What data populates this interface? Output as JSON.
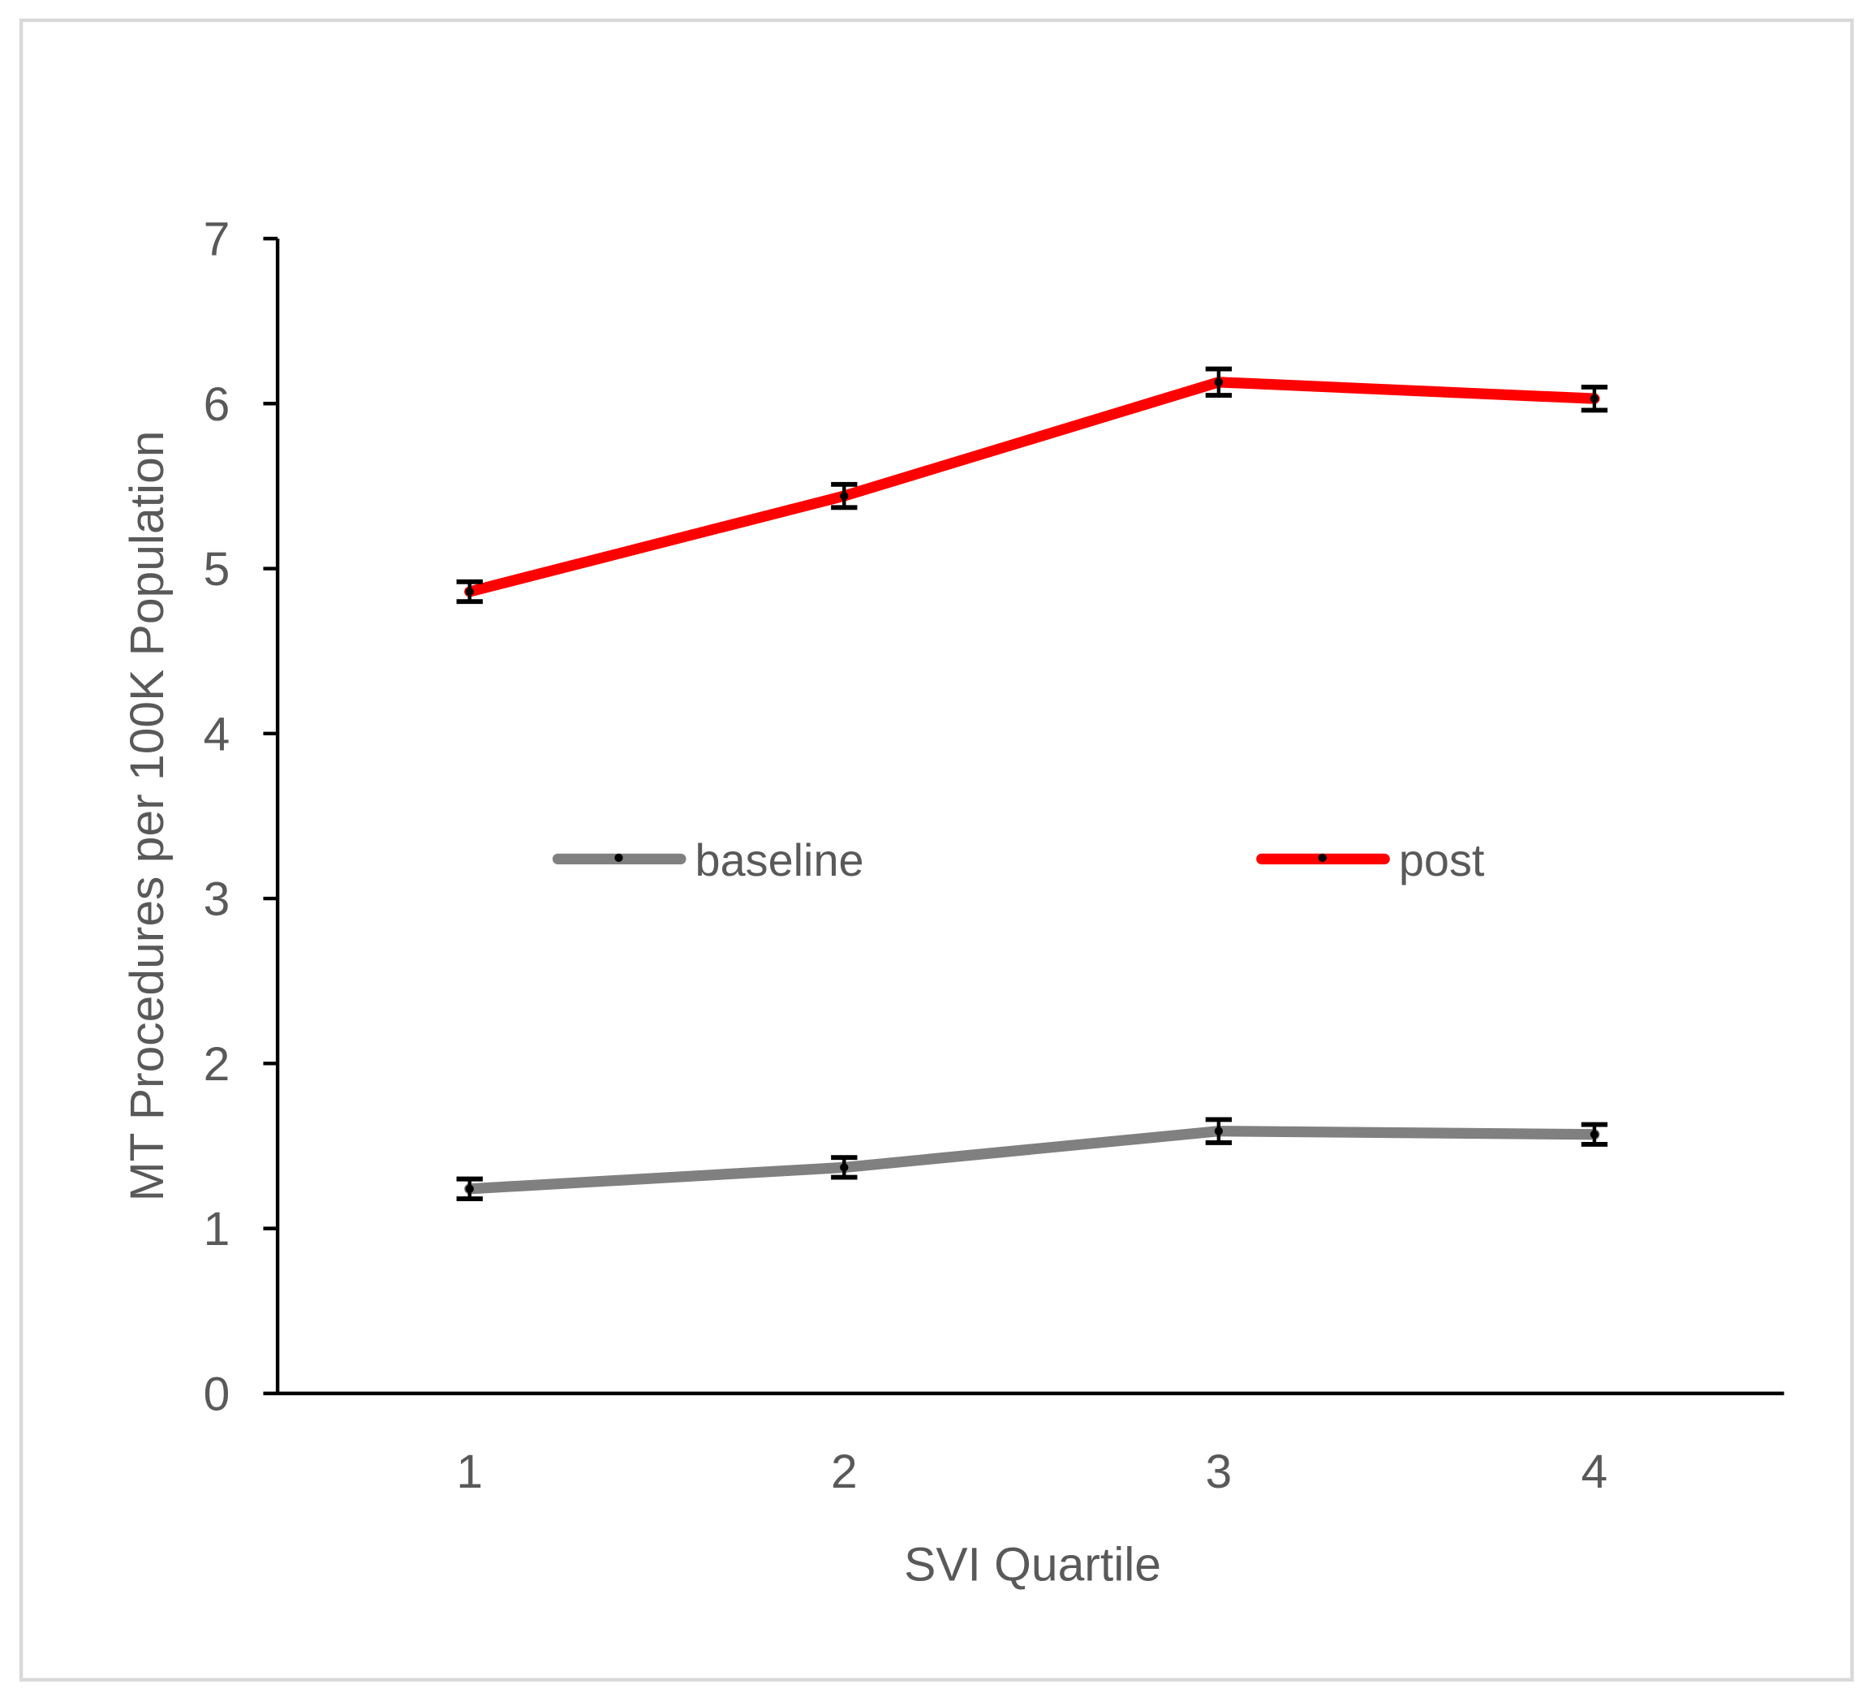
{
  "chart_data": {
    "type": "line",
    "title": "",
    "xlabel": "SVI Quartile",
    "ylabel": "MT Procedures per 100K Population",
    "categories": [
      "1",
      "2",
      "3",
      "4"
    ],
    "ylim": [
      0,
      7
    ],
    "yticks": [
      "0",
      "1",
      "2",
      "3",
      "4",
      "5",
      "6",
      "7"
    ],
    "grid": false,
    "legend_position": "center",
    "series": [
      {
        "name": "baseline",
        "color": "#808080",
        "values": [
          1.24,
          1.37,
          1.59,
          1.57
        ],
        "error": [
          0.06,
          0.06,
          0.07,
          0.06
        ]
      },
      {
        "name": "post",
        "color": "#ff0000",
        "values": [
          4.86,
          5.44,
          6.13,
          6.03
        ],
        "error": [
          0.06,
          0.07,
          0.08,
          0.07
        ]
      }
    ]
  }
}
